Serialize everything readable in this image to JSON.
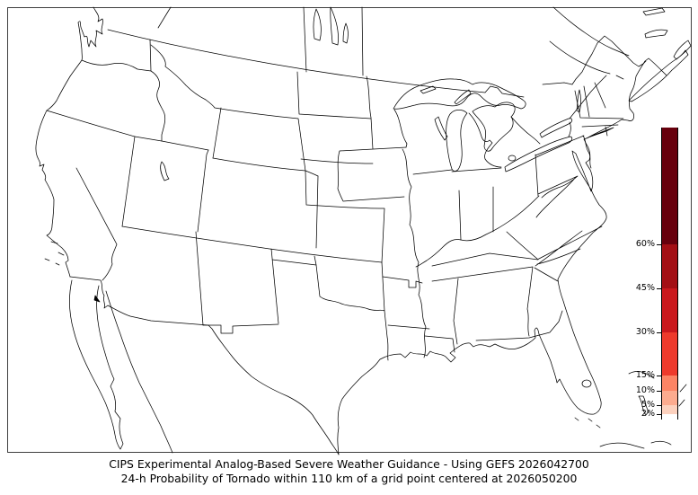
{
  "caption": {
    "line1": "CIPS Experimental Analog-Based Severe Weather Guidance - Using GEFS 2026042700",
    "line2": "24-h Probability of Tornado within 110 km of a grid point centered at 2026050200"
  },
  "map": {
    "region": "Continental United States with state outlines, southern Canada and northern Mexico",
    "probability_shading": "none (no areas at or above 2% probability are shaded)",
    "outline_color": "#000000",
    "background_color": "#ffffff"
  },
  "colorbar": {
    "orientation": "vertical",
    "min": 0,
    "max": 100,
    "unit": "%",
    "segments": [
      {
        "from": 0,
        "to": 2,
        "color": "#ffffff"
      },
      {
        "from": 2,
        "to": 5,
        "color": "#fcd1be"
      },
      {
        "from": 5,
        "to": 10,
        "color": "#fcab8f"
      },
      {
        "from": 10,
        "to": 15,
        "color": "#fc8465"
      },
      {
        "from": 15,
        "to": 30,
        "color": "#ee3a2c"
      },
      {
        "from": 30,
        "to": 45,
        "color": "#ca181d"
      },
      {
        "from": 45,
        "to": 60,
        "color": "#a30f15"
      },
      {
        "from": 60,
        "to": 100,
        "color": "#67000d"
      }
    ],
    "ticks": [
      {
        "value": 60,
        "label": "60%"
      },
      {
        "value": 45,
        "label": "45%"
      },
      {
        "value": 30,
        "label": "30%"
      },
      {
        "value": 15,
        "label": "15%"
      },
      {
        "value": 10,
        "label": "10%"
      },
      {
        "value": 5,
        "label": "5%"
      },
      {
        "value": 2,
        "label": "2%"
      }
    ]
  },
  "chart_data": {
    "type": "heatmap",
    "title": "24-h Probability of Tornado within 110 km of a grid point",
    "model": "GEFS 2026042700",
    "valid": "2026050200",
    "levels_percent": [
      2,
      5,
      10,
      15,
      30,
      45,
      60
    ],
    "level_colors": [
      "#fcd1be",
      "#fcab8f",
      "#fc8465",
      "#ee3a2c",
      "#ca181d",
      "#a30f15",
      "#67000d"
    ],
    "values": "no grid points reach the 2% threshold; map is unshaded",
    "legend_position": "right inside map frame"
  }
}
